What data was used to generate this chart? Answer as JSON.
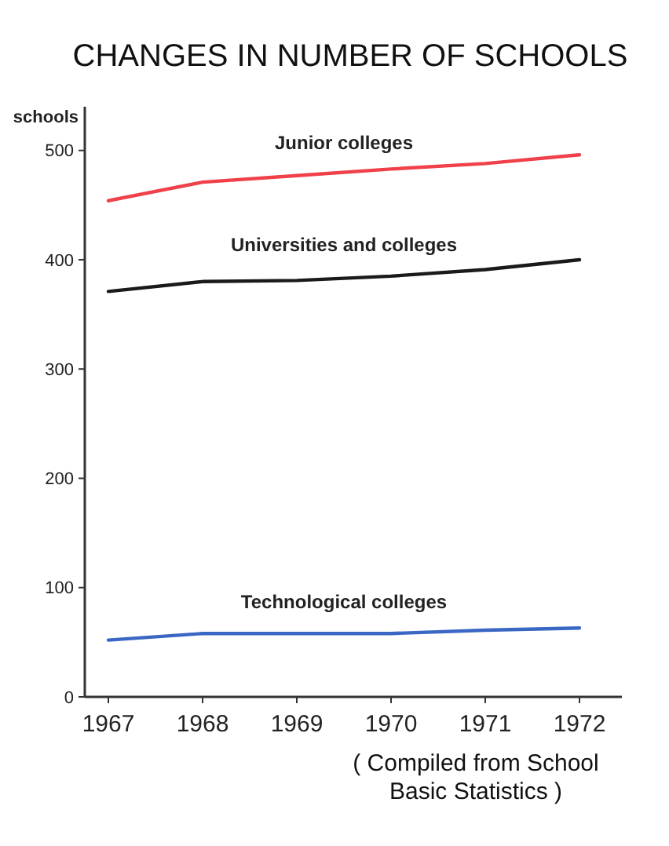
{
  "chart_data": {
    "type": "line",
    "title": "CHANGES IN NUMBER OF SCHOOLS",
    "ylabel": "schools",
    "x": [
      1967,
      1968,
      1969,
      1970,
      1971,
      1972
    ],
    "series": [
      {
        "name": "Junior colleges",
        "color": "#f0404a",
        "values": [
          454,
          471,
          477,
          483,
          488,
          496
        ]
      },
      {
        "name": "Universities and colleges",
        "color": "#1a1a1a",
        "values": [
          371,
          380,
          381,
          385,
          391,
          400
        ]
      },
      {
        "name": "Technological colleges",
        "color": "#3a66c4",
        "values": [
          52,
          58,
          58,
          58,
          61,
          63
        ]
      }
    ],
    "xlim": [
      1966.75,
      1972.45
    ],
    "xticks": [
      1967,
      1968,
      1969,
      1970,
      1971,
      1972
    ],
    "ylim": [
      0,
      540
    ],
    "yticks": [
      0,
      100,
      200,
      300,
      400,
      500
    ],
    "grid": false,
    "marker": "none",
    "line_style": "solid",
    "annotations": [
      "( Compiled from School Basic Statistics )"
    ]
  }
}
